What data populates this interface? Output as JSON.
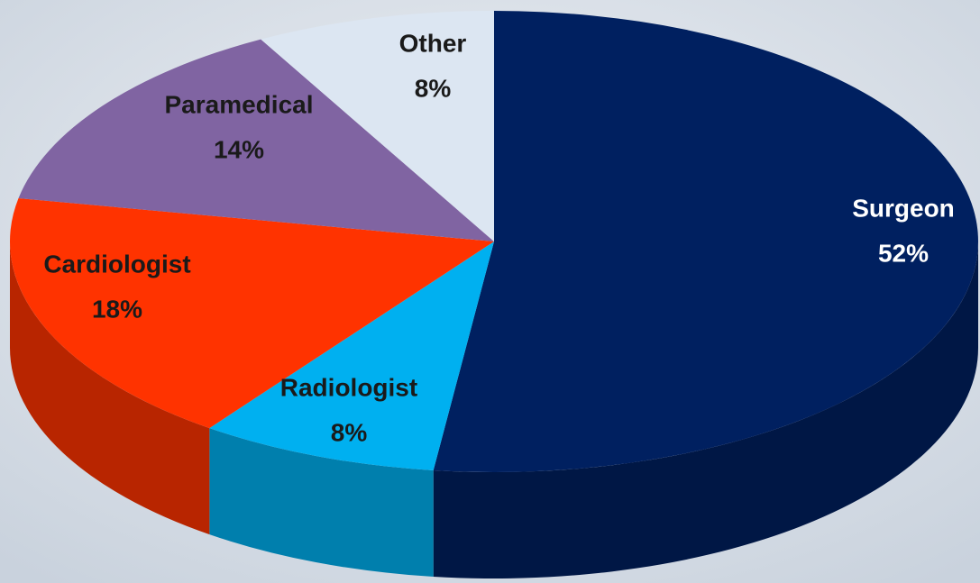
{
  "chart_data": {
    "type": "pie",
    "categories": [
      "Surgeon",
      "Radiologist",
      "Cardiologist",
      "Paramedical",
      "Other"
    ],
    "values": [
      52,
      8,
      18,
      14,
      8
    ],
    "value_labels": [
      "52%",
      "8%",
      "18%",
      "14%",
      "8%"
    ],
    "colors": [
      "#002060",
      "#00b0f0",
      "#ff3300",
      "#8064a2",
      "#dce6f2"
    ]
  }
}
